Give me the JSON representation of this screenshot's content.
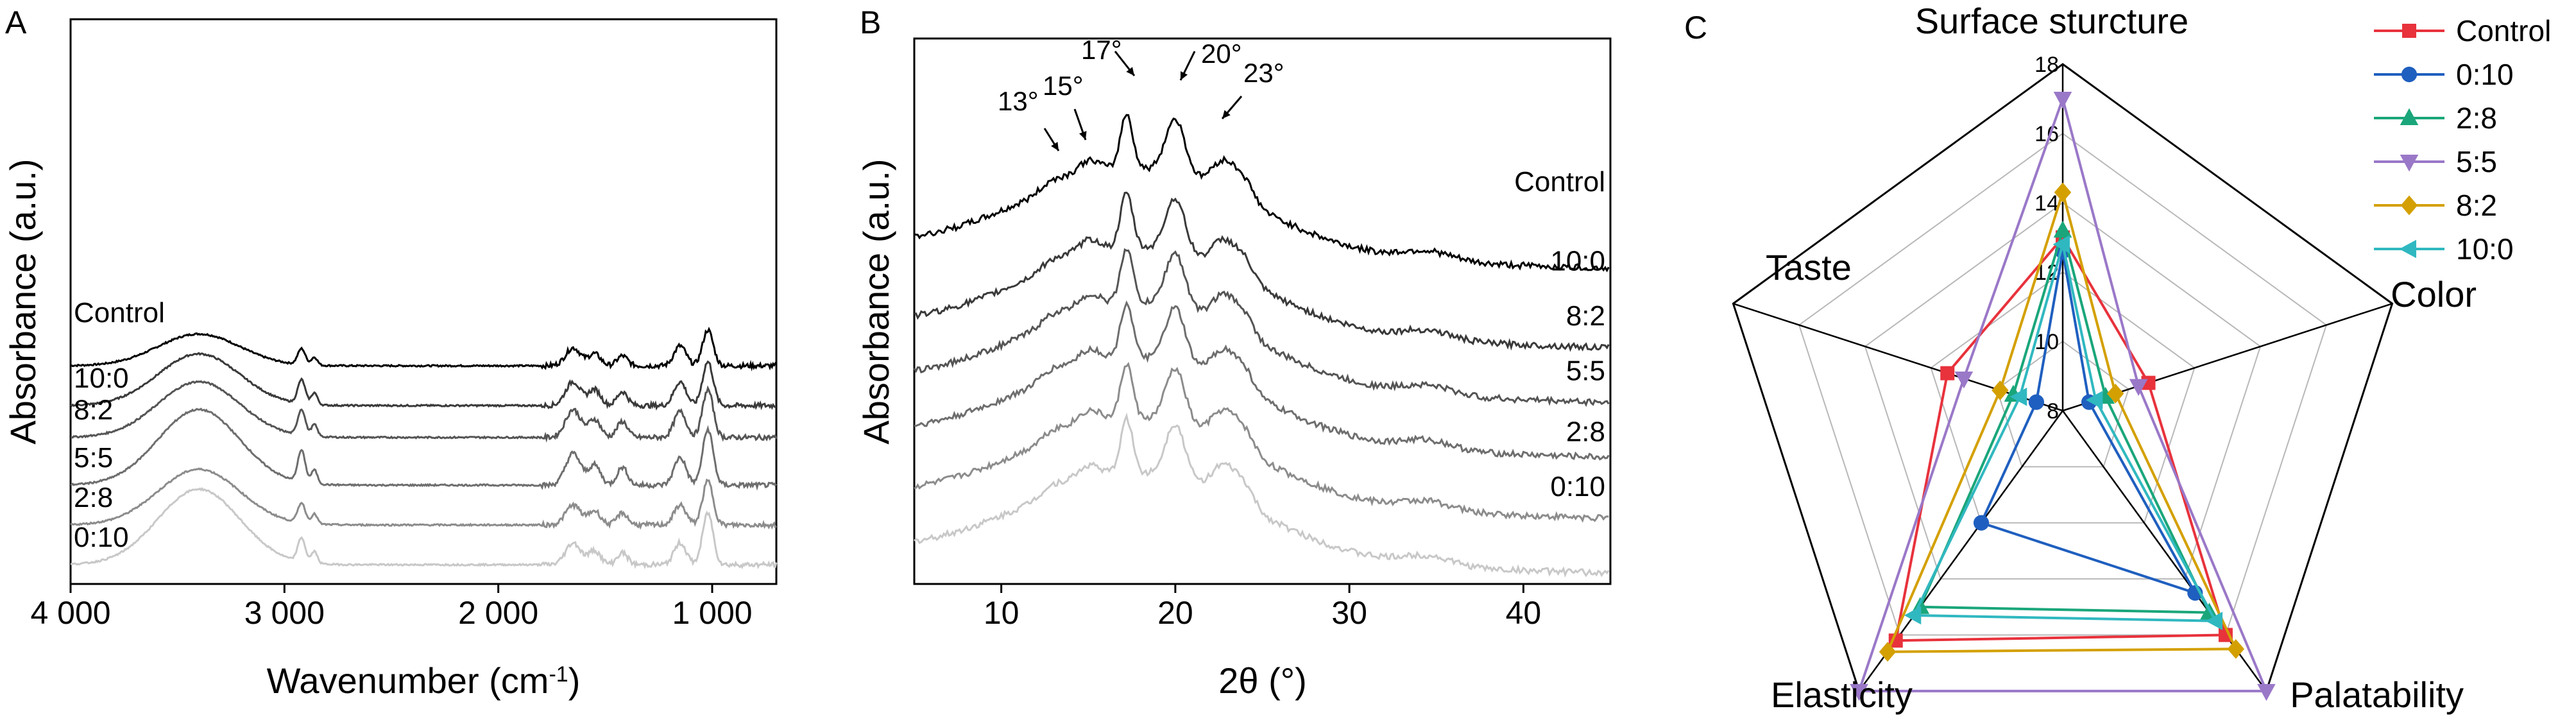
{
  "chart_data": [
    {
      "panel": "A",
      "type": "line",
      "xlabel": "Wavenumber (cm",
      "xlabel_sup": "-1",
      "xlabel_end": ")",
      "ylabel": "Absorbance (a.u.)",
      "xlim": [
        4000,
        700
      ],
      "x_ticks": [
        "4 000",
        "3 000",
        "2 000",
        "1 000"
      ],
      "x_tick_values": [
        4000,
        3000,
        2000,
        1000
      ],
      "series": [
        {
          "name": "Control",
          "color": "#000000",
          "offset": 5.0,
          "peaks": [
            [
              3400,
              0.8,
              270
            ],
            [
              2920,
              0.4,
              25
            ],
            [
              2860,
              0.2,
              20
            ],
            [
              1650,
              0.45,
              50
            ],
            [
              1550,
              0.3,
              40
            ],
            [
              1420,
              0.25,
              35
            ],
            [
              1150,
              0.5,
              40
            ],
            [
              1020,
              0.9,
              35
            ]
          ]
        },
        {
          "name": "10:0",
          "color": "#3a3a3a",
          "offset": 4.0,
          "peaks": [
            [
              3400,
              1.3,
              270
            ],
            [
              2920,
              0.6,
              25
            ],
            [
              2860,
              0.3,
              20
            ],
            [
              1650,
              0.6,
              50
            ],
            [
              1550,
              0.4,
              40
            ],
            [
              1420,
              0.35,
              35
            ],
            [
              1150,
              0.6,
              40
            ],
            [
              1020,
              1.1,
              35
            ]
          ]
        },
        {
          "name": "8:2",
          "color": "#555555",
          "offset": 3.2,
          "peaks": [
            [
              3400,
              1.4,
              270
            ],
            [
              2920,
              0.65,
              25
            ],
            [
              2860,
              0.3,
              20
            ],
            [
              1650,
              0.7,
              50
            ],
            [
              1550,
              0.45,
              40
            ],
            [
              1420,
              0.4,
              35
            ],
            [
              1150,
              0.65,
              40
            ],
            [
              1020,
              1.2,
              35
            ]
          ]
        },
        {
          "name": "5:5",
          "color": "#6e6e6e",
          "offset": 2.0,
          "peaks": [
            [
              3400,
              1.9,
              270
            ],
            [
              2920,
              0.8,
              25
            ],
            [
              2860,
              0.35,
              20
            ],
            [
              1650,
              0.8,
              50
            ],
            [
              1550,
              0.5,
              40
            ],
            [
              1420,
              0.45,
              35
            ],
            [
              1150,
              0.7,
              40
            ],
            [
              1020,
              1.4,
              35
            ]
          ]
        },
        {
          "name": "2:8",
          "color": "#8c8c8c",
          "offset": 1.0,
          "peaks": [
            [
              3400,
              1.4,
              270
            ],
            [
              2920,
              0.5,
              25
            ],
            [
              2860,
              0.25,
              20
            ],
            [
              1650,
              0.5,
              50
            ],
            [
              1550,
              0.35,
              40
            ],
            [
              1420,
              0.3,
              35
            ],
            [
              1150,
              0.5,
              40
            ],
            [
              1020,
              1.1,
              35
            ]
          ]
        },
        {
          "name": "0:10",
          "color": "#c8c8c8",
          "offset": 0.0,
          "peaks": [
            [
              3400,
              1.9,
              270
            ],
            [
              2920,
              0.6,
              25
            ],
            [
              2860,
              0.3,
              20
            ],
            [
              1650,
              0.55,
              50
            ],
            [
              1550,
              0.35,
              40
            ],
            [
              1420,
              0.3,
              35
            ],
            [
              1150,
              0.55,
              40
            ],
            [
              1020,
              1.3,
              35
            ]
          ]
        }
      ]
    },
    {
      "panel": "B",
      "type": "line",
      "xlabel": "2θ (°)",
      "ylabel": "Absorbance (a.u.)",
      "xlim": [
        5,
        45
      ],
      "x_ticks": [
        "10",
        "20",
        "30",
        "40"
      ],
      "x_tick_values": [
        10,
        20,
        30,
        40
      ],
      "annotations": [
        {
          "text": "13°",
          "x": 13
        },
        {
          "text": "15°",
          "x": 15
        },
        {
          "text": "17°",
          "x": 17
        },
        {
          "text": "20°",
          "x": 20
        },
        {
          "text": "23°",
          "x": 23
        }
      ],
      "series": [
        {
          "name": "Control",
          "color": "#000000",
          "offset": 5.0
        },
        {
          "name": "10:0",
          "color": "#3a3a3a",
          "offset": 3.7
        },
        {
          "name": "8:2",
          "color": "#555555",
          "offset": 2.8
        },
        {
          "name": "5:5",
          "color": "#6e6e6e",
          "offset": 1.9
        },
        {
          "name": "2:8",
          "color": "#8c8c8c",
          "offset": 0.9
        },
        {
          "name": "0:10",
          "color": "#c8c8c8",
          "offset": 0.0
        }
      ]
    },
    {
      "panel": "C",
      "type": "radar",
      "axes": [
        "Surface sturcture",
        "Color",
        "Palatability",
        "Elasticity",
        "Taste"
      ],
      "rlim": [
        8,
        18
      ],
      "r_ticks": [
        "8",
        "10",
        "12",
        "14",
        "16",
        "18"
      ],
      "r_tick_values": [
        8,
        10,
        12,
        14,
        16,
        18
      ],
      "legend_position": "top-right",
      "series": [
        {
          "name": "Control",
          "color": "#e8323c",
          "marker": "square",
          "values": [
            13.0,
            10.6,
            16.0,
            16.2,
            11.5
          ]
        },
        {
          "name": "0:10",
          "color": "#1f5fbf",
          "marker": "circle",
          "values": [
            12.6,
            8.8,
            14.5,
            12.0,
            8.8
          ]
        },
        {
          "name": "2:8",
          "color": "#1aa67a",
          "marker": "triangle-up",
          "values": [
            13.2,
            9.3,
            15.2,
            15.0,
            9.5
          ]
        },
        {
          "name": "5:5",
          "color": "#9a78c8",
          "marker": "triangle-down",
          "values": [
            17.0,
            10.3,
            18.0,
            18.0,
            11.0
          ]
        },
        {
          "name": "8:2",
          "color": "#d4a000",
          "marker": "diamond",
          "values": [
            14.3,
            9.6,
            16.5,
            16.6,
            9.9
          ]
        },
        {
          "name": "10:0",
          "color": "#30b8c0",
          "marker": "triangle-left",
          "values": [
            12.8,
            9.0,
            15.5,
            15.3,
            9.3
          ]
        }
      ]
    }
  ],
  "panel_labels": {
    "a": "A",
    "b": "B",
    "c": "C"
  }
}
